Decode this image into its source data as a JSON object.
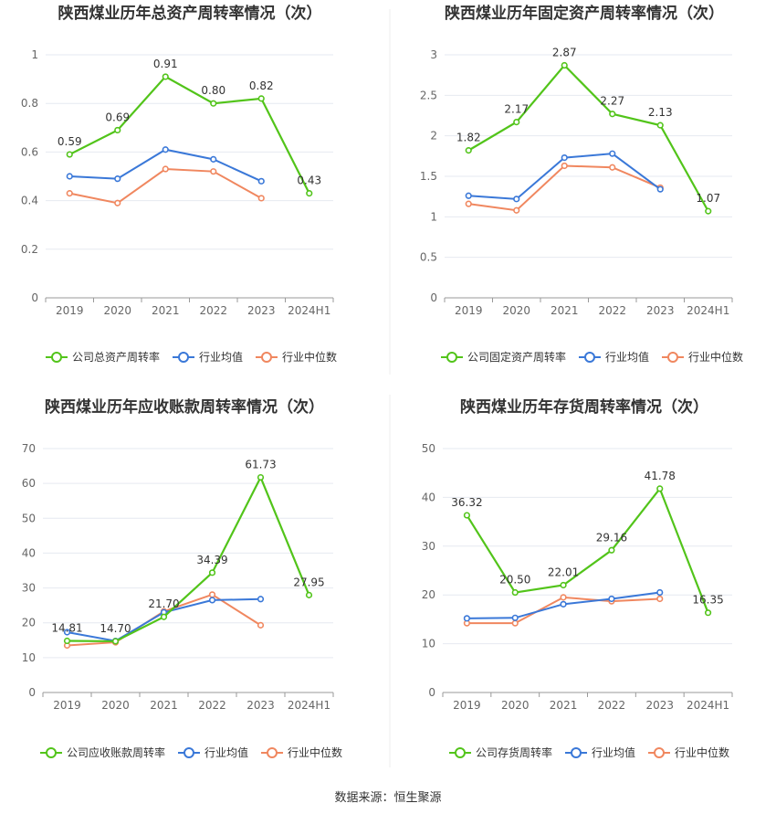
{
  "source": "数据来源：恒生聚源",
  "colors": {
    "company": "#52c41a",
    "avg": "#3a78d8",
    "median": "#f0875f"
  },
  "chart_data": [
    {
      "type": "line",
      "title": "陕西煤业历年总资产周转率情况（次）",
      "categories": [
        "2019",
        "2020",
        "2021",
        "2022",
        "2023",
        "2024H1"
      ],
      "ylim": [
        0,
        1
      ],
      "yticks": [
        "0",
        "0.2",
        "0.4",
        "0.6",
        "0.8",
        "1"
      ],
      "ytick_values": [
        0,
        0.2,
        0.4,
        0.6,
        0.8,
        1
      ],
      "legend_position": "bottom",
      "series": [
        {
          "name": "公司总资产周转率",
          "values": [
            0.59,
            0.69,
            0.91,
            0.8,
            0.82,
            0.43
          ],
          "labels": [
            "0.59",
            "0.69",
            "0.91",
            "0.80",
            "0.82",
            "0.43"
          ]
        },
        {
          "name": "行业均值",
          "values": [
            0.5,
            0.49,
            0.61,
            0.57,
            0.48,
            null
          ]
        },
        {
          "name": "行业中位数",
          "values": [
            0.43,
            0.39,
            0.53,
            0.52,
            0.41,
            null
          ]
        }
      ]
    },
    {
      "type": "line",
      "title": "陕西煤业历年固定资产周转率情况（次）",
      "categories": [
        "2019",
        "2020",
        "2021",
        "2022",
        "2023",
        "2024H1"
      ],
      "ylim": [
        0,
        3
      ],
      "yticks": [
        "0",
        "0.5",
        "1",
        "1.5",
        "2",
        "2.5",
        "3"
      ],
      "ytick_values": [
        0,
        0.5,
        1,
        1.5,
        2,
        2.5,
        3
      ],
      "legend_position": "bottom",
      "series": [
        {
          "name": "公司固定资产周转率",
          "values": [
            1.82,
            2.17,
            2.87,
            2.27,
            2.13,
            1.07
          ],
          "labels": [
            "1.82",
            "2.17",
            "2.87",
            "2.27",
            "2.13",
            "1.07"
          ]
        },
        {
          "name": "行业均值",
          "values": [
            1.26,
            1.22,
            1.73,
            1.78,
            1.34,
            null
          ]
        },
        {
          "name": "行业中位数",
          "values": [
            1.16,
            1.08,
            1.63,
            1.61,
            1.36,
            null
          ]
        }
      ]
    },
    {
      "type": "line",
      "title": "陕西煤业历年应收账款周转率情况（次）",
      "categories": [
        "2019",
        "2020",
        "2021",
        "2022",
        "2023",
        "2024H1"
      ],
      "ylim": [
        0,
        70
      ],
      "yticks": [
        "0",
        "10",
        "20",
        "30",
        "40",
        "50",
        "60",
        "70"
      ],
      "ytick_values": [
        0,
        10,
        20,
        30,
        40,
        50,
        60,
        70
      ],
      "legend_position": "bottom",
      "series": [
        {
          "name": "公司应收账款周转率",
          "values": [
            14.81,
            14.7,
            21.7,
            34.39,
            61.73,
            27.95
          ],
          "labels": [
            "14.81",
            "14.70",
            "21.70",
            "34.39",
            "61.73",
            "27.95"
          ]
        },
        {
          "name": "行业均值",
          "values": [
            17.3,
            14.8,
            23.0,
            26.5,
            26.8,
            null
          ]
        },
        {
          "name": "行业中位数",
          "values": [
            13.5,
            14.4,
            23.3,
            28.1,
            19.3,
            null
          ]
        }
      ]
    },
    {
      "type": "line",
      "title": "陕西煤业历年存货周转率情况（次）",
      "categories": [
        "2019",
        "2020",
        "2021",
        "2022",
        "2023",
        "2024H1"
      ],
      "ylim": [
        0,
        50
      ],
      "yticks": [
        "0",
        "10",
        "20",
        "30",
        "40",
        "50"
      ],
      "ytick_values": [
        0,
        10,
        20,
        30,
        40,
        50
      ],
      "legend_position": "bottom",
      "series": [
        {
          "name": "公司存货周转率",
          "values": [
            36.32,
            20.5,
            22.01,
            29.16,
            41.78,
            16.35
          ],
          "labels": [
            "36.32",
            "20.50",
            "22.01",
            "29.16",
            "41.78",
            "16.35"
          ]
        },
        {
          "name": "行业均值",
          "values": [
            15.2,
            15.3,
            18.1,
            19.2,
            20.5,
            null
          ]
        },
        {
          "name": "行业中位数",
          "values": [
            14.2,
            14.2,
            19.5,
            18.7,
            19.2,
            null
          ]
        }
      ]
    }
  ]
}
